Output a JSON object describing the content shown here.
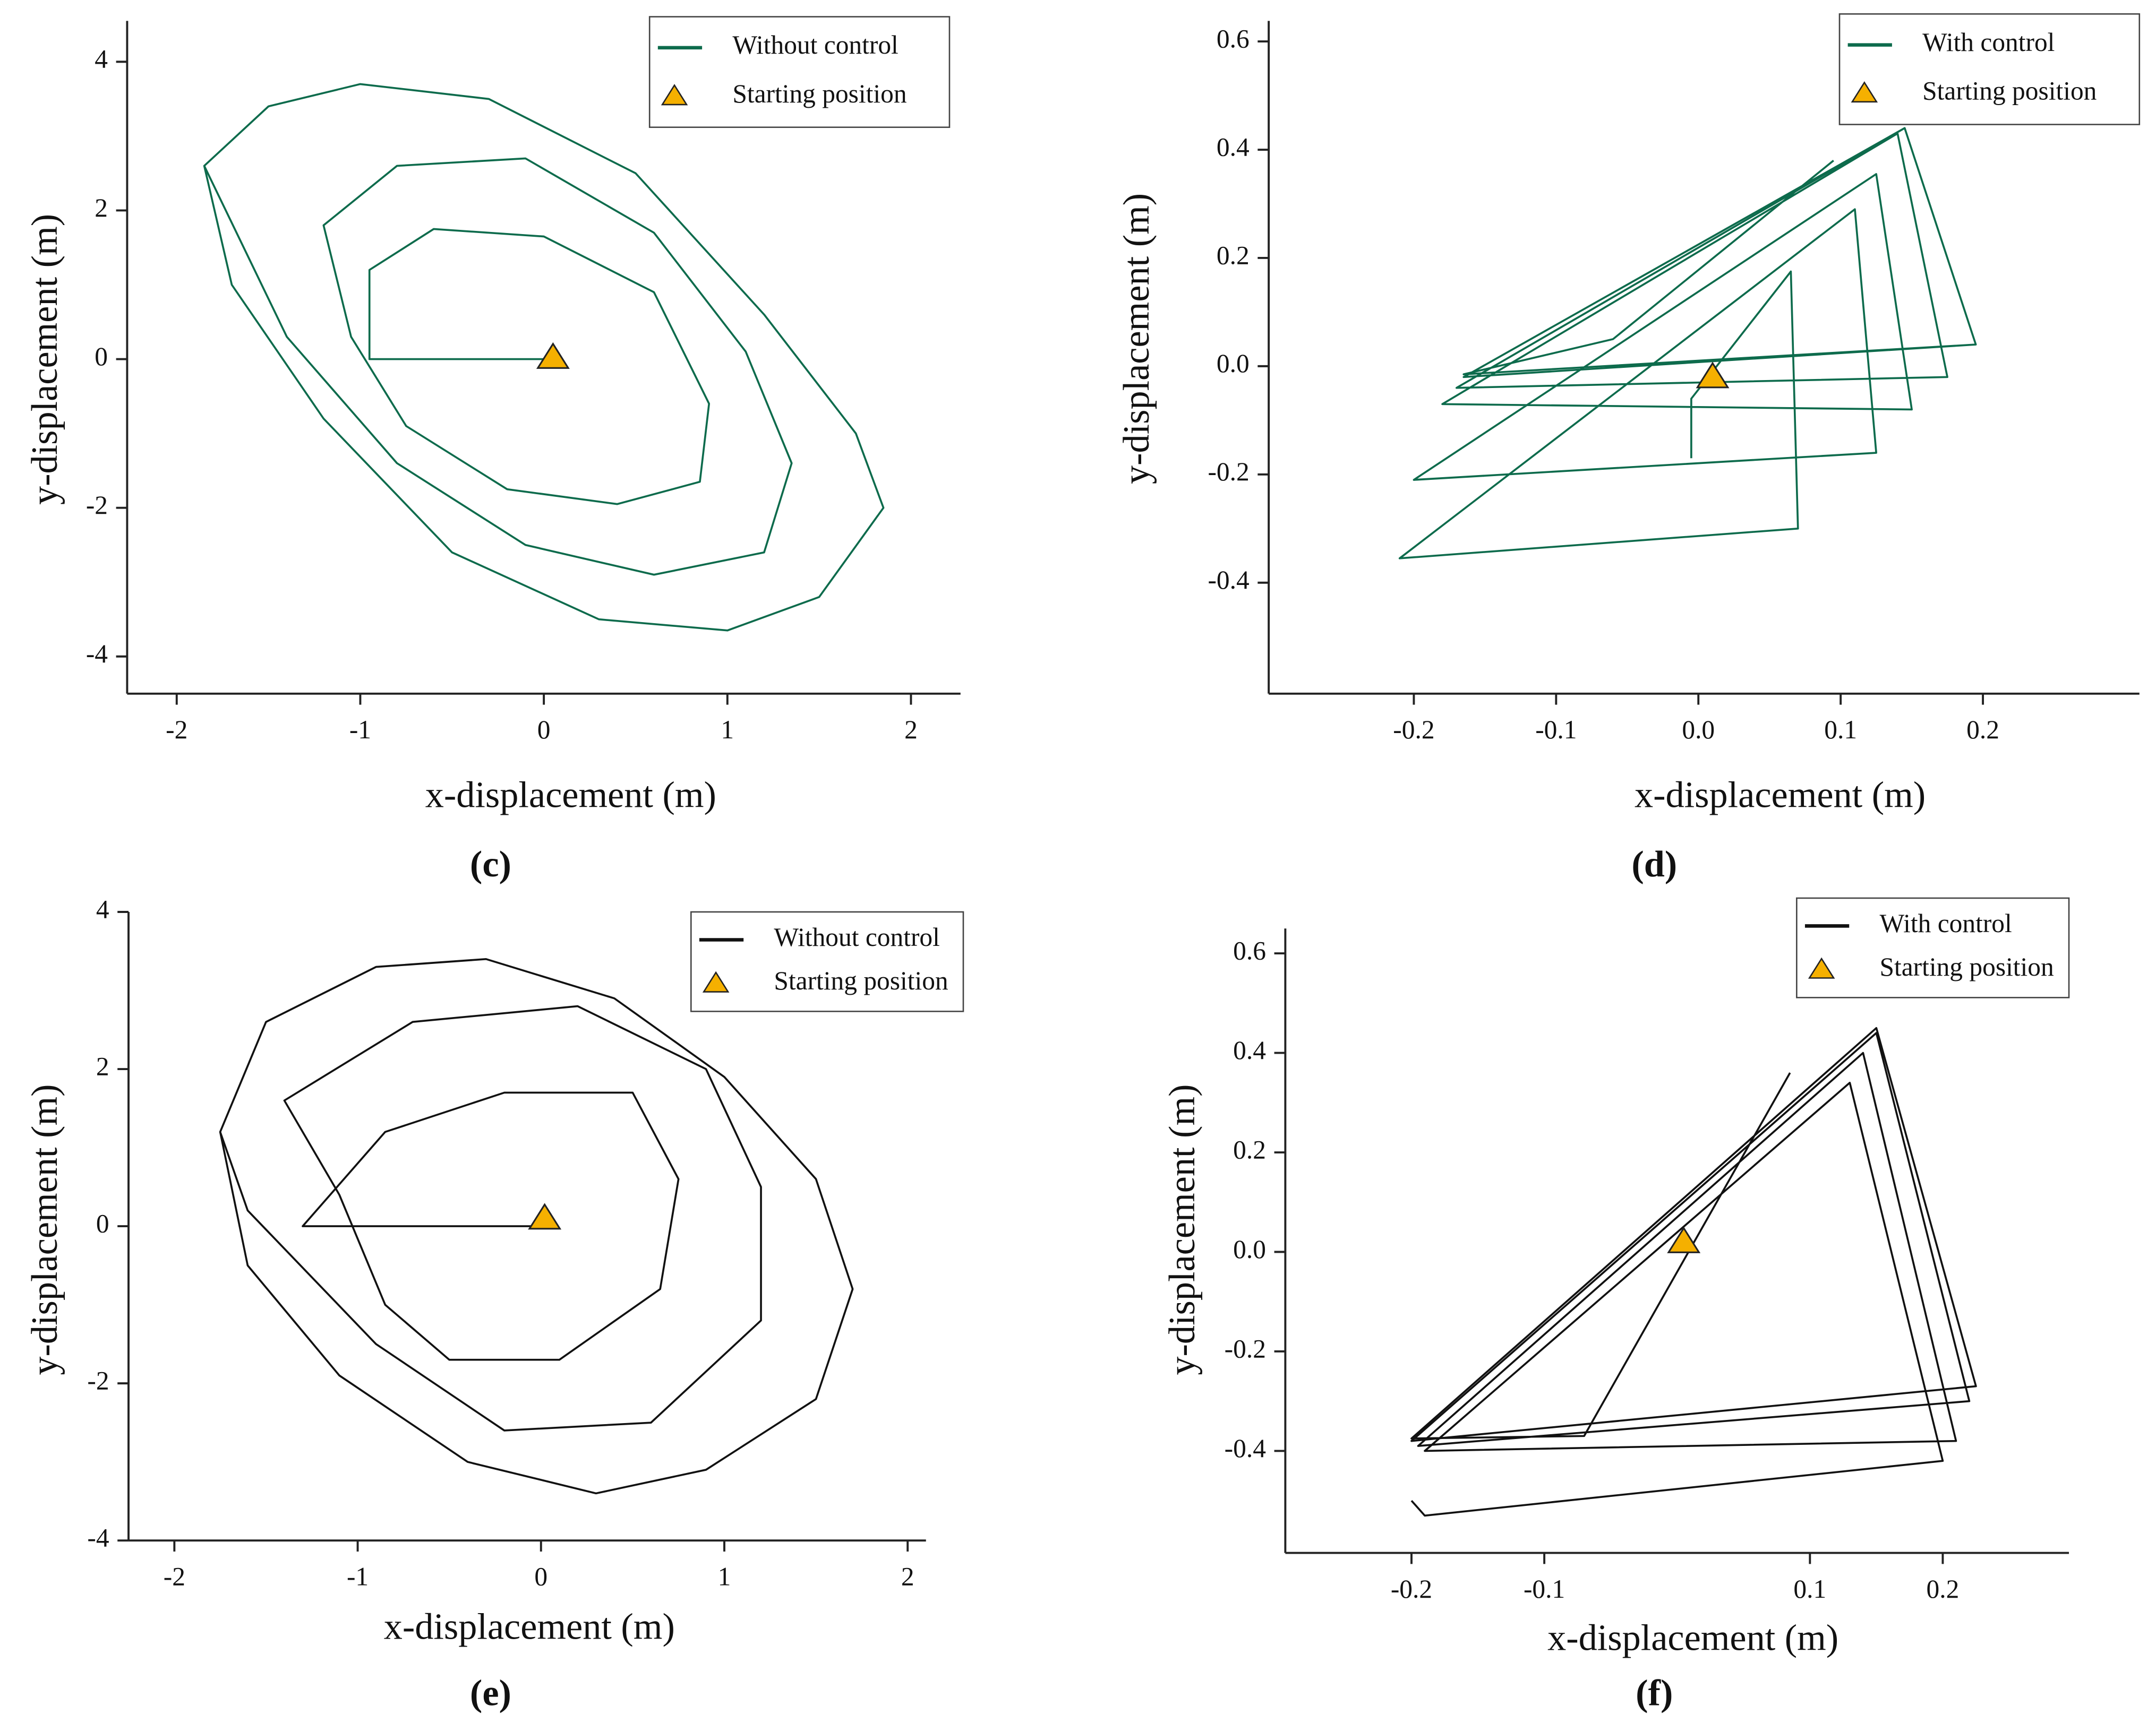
{
  "chart_data": [
    {
      "type": "line",
      "label": "(c)",
      "x_label": "x-displacement (m)",
      "y_label": "y-displacement (m)",
      "xlim": [
        -2.27,
        2.27
      ],
      "ylim": [
        -4.5,
        4.55
      ],
      "xticks": [
        -2,
        -1,
        0,
        1,
        2
      ],
      "yticks": [
        -4,
        -2,
        0,
        2,
        4
      ],
      "series": [
        {
          "name": "Without control",
          "color": "#0d6b4c",
          "x": [
            0.05,
            -0.95,
            -0.95,
            -0.6,
            0,
            0.6,
            0.9,
            0.85,
            0.4,
            -0.2,
            -0.75,
            -1.05,
            -1.2,
            -0.8,
            -0.1,
            0.6,
            1.1,
            1.35,
            1.2,
            0.6,
            -0.1,
            -0.8,
            -1.4,
            -1.85,
            -1.5,
            -1,
            -0.3,
            0.5,
            1.2,
            1.7,
            1.85,
            1.5,
            1,
            0.3,
            -0.5,
            -1.2,
            -1.7,
            -1.85
          ],
          "values": [
            0,
            0,
            1.2,
            1.75,
            1.65,
            0.9,
            -0.6,
            -1.65,
            -1.95,
            -1.75,
            -0.9,
            0.3,
            1.8,
            2.6,
            2.7,
            1.7,
            0.1,
            -1.4,
            -2.6,
            -2.9,
            -2.5,
            -1.4,
            0.3,
            2.6,
            3.4,
            3.7,
            3.5,
            2.5,
            0.6,
            -1,
            -2,
            -3.2,
            -3.65,
            -3.5,
            -2.6,
            -0.8,
            1,
            2.6
          ]
        },
        {
          "name": "Starting position",
          "color": "#f5b000",
          "marker": "triangle",
          "x": [
            0.05
          ],
          "values": [
            0.02
          ]
        }
      ]
    },
    {
      "type": "line",
      "label": "(d)",
      "x_label": "x-displacement (m)",
      "y_label": "y-displacement (m)",
      "xlim": [
        -0.302,
        0.31
      ],
      "ylim": [
        -0.605,
        0.638
      ],
      "xticks": [
        -0.2,
        -0.1,
        {
          "value": 0,
          "label": "0.0"
        },
        0.1,
        0.2
      ],
      "yticks": [
        -0.4,
        -0.2,
        {
          "value": 0,
          "label": "0.0"
        },
        0.2,
        0.4,
        0.6
      ],
      "series": [
        {
          "name": "With  control",
          "color": "#0d6b4c",
          "x": [
            -0.005,
            -0.005,
            0.065,
            0.07,
            -0.21,
            0.11,
            0.125,
            -0.2,
            0.125,
            0.15,
            -0.18,
            0.14,
            0.175,
            -0.17,
            0.145,
            0.195,
            -0.165,
            0.145,
            0.195,
            -0.165,
            -0.06,
            0.095
          ],
          "values": [
            -0.17,
            -0.06,
            0.175,
            -0.3,
            -0.355,
            0.29,
            -0.16,
            -0.21,
            0.355,
            -0.08,
            -0.07,
            0.43,
            -0.02,
            -0.04,
            0.44,
            0.04,
            -0.02,
            0.44,
            0.04,
            -0.015,
            0.05,
            0.38
          ]
        },
        {
          "name": "Starting position",
          "color": "#f5b000",
          "marker": "triangle",
          "x": [
            0.01
          ],
          "values": [
            -0.02
          ]
        }
      ]
    },
    {
      "type": "line",
      "label": "(e)",
      "x_label": "x-displacement (m)",
      "y_label": "y-displacement (m)",
      "xlim": [
        -2.25,
        2.1
      ],
      "ylim": [
        -4,
        4
      ],
      "xticks": [
        -2,
        -1,
        0,
        1,
        2
      ],
      "yticks": [
        -4,
        -2,
        0,
        2,
        4
      ],
      "series": [
        {
          "name": "Without control",
          "color": "#111111",
          "x": [
            0.02,
            -1.3,
            -0.85,
            -0.2,
            0.5,
            0.75,
            0.65,
            0.1,
            -0.5,
            -0.85,
            -1.1,
            -1.4,
            -0.7,
            0.2,
            0.9,
            1.2,
            1.2,
            0.6,
            -0.2,
            -0.9,
            -1.6,
            -1.75,
            -1.5,
            -0.9,
            -0.3,
            0.4,
            1.0,
            1.5,
            1.7,
            1.5,
            0.9,
            0.3,
            -0.4,
            -1.1,
            -1.6,
            -1.75
          ],
          "values": [
            0,
            0,
            1.2,
            1.7,
            1.7,
            0.6,
            -0.8,
            -1.7,
            -1.7,
            -1.0,
            0.4,
            1.6,
            2.6,
            2.8,
            2.0,
            0.5,
            -1.2,
            -2.5,
            -2.6,
            -1.5,
            0.2,
            1.2,
            2.6,
            3.3,
            3.4,
            2.9,
            1.9,
            0.6,
            -0.8,
            -2.2,
            -3.1,
            -3.4,
            -3.0,
            -1.9,
            -0.5,
            1.2
          ]
        },
        {
          "name": "Starting position",
          "color": "#f5b000",
          "marker": "triangle",
          "x": [
            0.02
          ],
          "values": [
            0.1
          ]
        }
      ]
    },
    {
      "type": "line",
      "label": "(f)",
      "x_label": "x-displacement (m)",
      "y_label": "y-displacement (m)",
      "xlim": [
        -0.295,
        0.295
      ],
      "ylim": [
        -0.605,
        0.65
      ],
      "xticks": [
        -0.2,
        -0.1,
        0.1,
        0.2
      ],
      "yticks": [
        -0.4,
        -0.2,
        {
          "value": 0,
          "label": "0.0"
        },
        0.2,
        0.4,
        0.6
      ],
      "series": [
        {
          "name": "With  control",
          "color": "#111111",
          "x": [
            -0.2,
            -0.19,
            0.2,
            0.13,
            -0.19,
            0.21,
            0.14,
            -0.195,
            0.22,
            0.15,
            -0.2,
            0.225,
            0.15,
            -0.2,
            -0.07,
            0.085
          ],
          "values": [
            -0.5,
            -0.53,
            -0.42,
            0.34,
            -0.4,
            -0.38,
            0.4,
            -0.39,
            -0.3,
            0.44,
            -0.38,
            -0.27,
            0.45,
            -0.375,
            -0.37,
            0.36
          ]
        },
        {
          "name": "Starting position",
          "color": "#f5b000",
          "marker": "triangle",
          "x": [
            0.005
          ],
          "values": [
            0.02
          ]
        }
      ]
    }
  ]
}
